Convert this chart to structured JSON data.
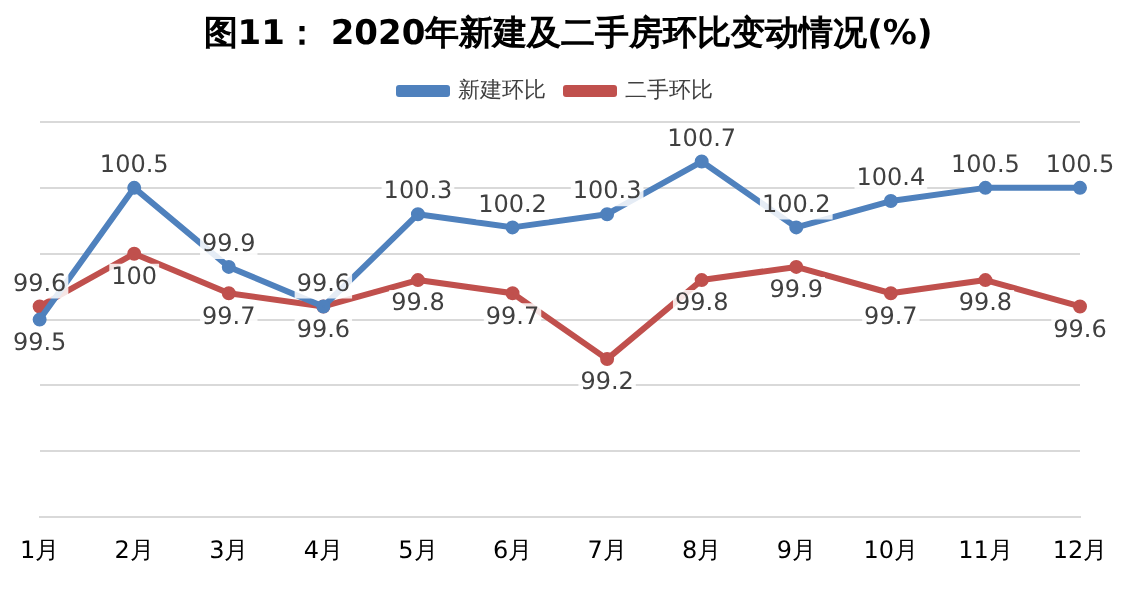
{
  "chart_data": {
    "type": "line",
    "title": "图11： 2020年新建及二手房环比变动情况(%)",
    "categories": [
      "1月",
      "2月",
      "3月",
      "4月",
      "5月",
      "6月",
      "7月",
      "8月",
      "9月",
      "10月",
      "11月",
      "12月"
    ],
    "series": [
      {
        "name": "新建环比",
        "color": "#4f81bd",
        "values": [
          99.5,
          100.5,
          99.9,
          99.6,
          100.3,
          100.2,
          100.3,
          100.7,
          100.2,
          100.4,
          100.5,
          100.5
        ]
      },
      {
        "name": "二手环比",
        "color": "#c0504d",
        "values": [
          99.6,
          100,
          99.7,
          99.6,
          99.8,
          99.7,
          99.2,
          99.8,
          99.9,
          99.7,
          99.8,
          99.6
        ]
      }
    ],
    "ylim": [
      98,
      101
    ],
    "yticks": [
      {
        "value": 98,
        "label": null
      },
      {
        "value": 98.5,
        "label": null
      },
      {
        "value": 99,
        "label": null
      },
      {
        "value": 99.5,
        "label": null
      },
      {
        "value": 100,
        "label": null
      },
      {
        "value": 100.5,
        "label": null
      },
      {
        "value": 101,
        "label": null
      }
    ],
    "tick_labels": "x",
    "grid": "y",
    "legend": "top",
    "marker": "circle",
    "line_style": "solid",
    "data_labels": true
  }
}
